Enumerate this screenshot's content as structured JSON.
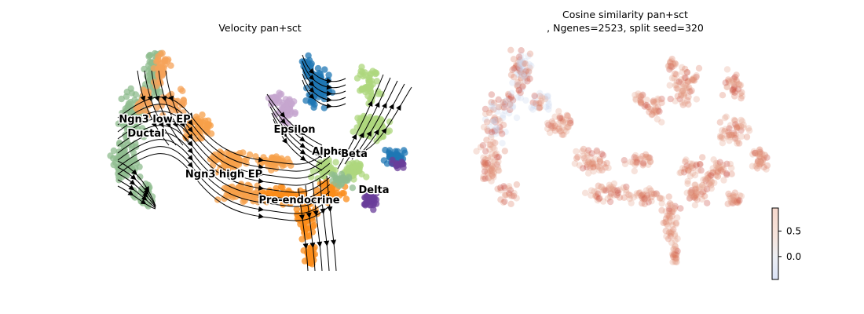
{
  "chart_data": [
    {
      "type": "scatter",
      "title": "Velocity pan+sct",
      "clusters": [
        {
          "label": "Ngn3 low EP",
          "color": "#f5a35a"
        },
        {
          "label": "Ductal",
          "color": "#8fbc8f"
        },
        {
          "label": "Epsilon",
          "color": "#c5a5cf"
        },
        {
          "label": "Alpha",
          "color": "#1f77b4"
        },
        {
          "label": "Beta",
          "color": "#aed77e"
        },
        {
          "label": "Ngn3 high EP",
          "color": "#f7a04a"
        },
        {
          "label": "Delta",
          "color": "#6a3d9a"
        },
        {
          "label": "Pre-endocrine",
          "color": "#fb8c1a"
        }
      ],
      "streamlines": true,
      "axes": "off"
    },
    {
      "type": "scatter",
      "title": "Cosine similarity pan+sct",
      "subtitle": ", Ngenes=2523, split seed=320",
      "colormap": "coolwarm",
      "colorbar_ticks": [
        {
          "value": 0.5,
          "label": "0.5"
        },
        {
          "value": 0.0,
          "label": "0.0"
        }
      ],
      "colorbar_range": [
        -0.45,
        0.95
      ],
      "axes": "off"
    }
  ]
}
